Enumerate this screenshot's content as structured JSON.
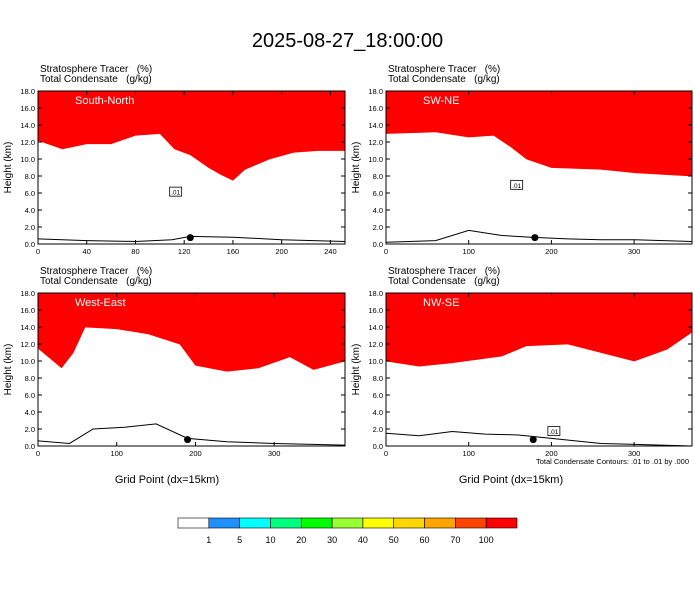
{
  "title": "2025-08-27_18:00:00",
  "field_labels": {
    "shaded": "Stratosphere Tracer   (%)",
    "contour": "Total Condensate   (g/kg)"
  },
  "ylabel": "Height (km)",
  "xlabel": "Grid Point (dx=15km)",
  "contour_note": "Total Condensate Contours: .01 to .01 by .000",
  "contour_label": ".01",
  "colorbar": {
    "levels": [
      "1",
      "5",
      "10",
      "20",
      "30",
      "40",
      "50",
      "60",
      "70",
      "100"
    ],
    "colors": [
      "#ffffff",
      "#1e90ff",
      "#00ffff",
      "#00ff7f",
      "#00ff00",
      "#9aff32",
      "#ffff00",
      "#ffd700",
      "#ffa500",
      "#ff4500",
      "#ff0000"
    ]
  },
  "chart_data": [
    {
      "type": "heatmap",
      "name": "South-North",
      "xlim": [
        0,
        252
      ],
      "ylim": [
        0,
        18
      ],
      "xticks": [
        0,
        40,
        80,
        120,
        160,
        200,
        240
      ],
      "yticks": [
        0.0,
        2.0,
        4.0,
        6.0,
        8.0,
        10.0,
        12.0,
        14.0,
        16.0,
        18.0
      ],
      "tracer_boundary_km": [
        [
          0,
          13.2
        ],
        [
          20,
          12.2
        ],
        [
          40,
          12.8
        ],
        [
          60,
          12.8
        ],
        [
          80,
          13.8
        ],
        [
          100,
          14.0
        ],
        [
          112,
          12.2
        ],
        [
          125,
          11.5
        ],
        [
          140,
          10.0
        ],
        [
          150,
          9.2
        ],
        [
          160,
          8.5
        ],
        [
          170,
          9.8
        ],
        [
          190,
          11.0
        ],
        [
          210,
          11.8
        ],
        [
          230,
          12.0
        ],
        [
          252,
          12.0
        ]
      ],
      "terrain_km": [
        [
          0,
          0.6
        ],
        [
          40,
          0.4
        ],
        [
          80,
          0.3
        ],
        [
          110,
          0.5
        ],
        [
          125,
          0.9
        ],
        [
          160,
          0.8
        ],
        [
          200,
          0.5
        ],
        [
          252,
          0.3
        ]
      ],
      "marker_x": 125,
      "contour_label_at": [
        113,
        6.1
      ]
    },
    {
      "type": "heatmap",
      "name": "SW-NE",
      "xlim": [
        0,
        370
      ],
      "ylim": [
        0,
        18
      ],
      "xticks": [
        0,
        100,
        200,
        300
      ],
      "yticks": [
        0.0,
        2.0,
        4.0,
        6.0,
        8.0,
        10.0,
        12.0,
        14.0,
        16.0,
        18.0
      ],
      "tracer_boundary_km": [
        [
          0,
          14.0
        ],
        [
          60,
          14.2
        ],
        [
          100,
          13.6
        ],
        [
          130,
          13.8
        ],
        [
          150,
          12.5
        ],
        [
          170,
          11.0
        ],
        [
          200,
          10.0
        ],
        [
          260,
          9.8
        ],
        [
          300,
          9.4
        ],
        [
          370,
          9.0
        ]
      ],
      "terrain_km": [
        [
          0,
          0.2
        ],
        [
          60,
          0.4
        ],
        [
          100,
          1.6
        ],
        [
          140,
          1.0
        ],
        [
          175,
          0.8
        ],
        [
          220,
          0.6
        ],
        [
          260,
          0.5
        ],
        [
          300,
          0.5
        ],
        [
          370,
          0.3
        ]
      ],
      "marker_x": 180,
      "contour_label_at": [
        158,
        6.9
      ]
    },
    {
      "type": "heatmap",
      "name": "West-East",
      "xlim": [
        0,
        390
      ],
      "ylim": [
        0,
        18
      ],
      "xticks": [
        0,
        100,
        200,
        300
      ],
      "yticks": [
        0.0,
        2.0,
        4.0,
        6.0,
        8.0,
        10.0,
        12.0,
        14.0,
        16.0,
        18.0
      ],
      "tracer_boundary_km": [
        [
          0,
          12.5
        ],
        [
          30,
          10.2
        ],
        [
          45,
          12.0
        ],
        [
          60,
          15.0
        ],
        [
          100,
          14.8
        ],
        [
          140,
          14.2
        ],
        [
          180,
          13.0
        ],
        [
          200,
          10.5
        ],
        [
          240,
          9.8
        ],
        [
          280,
          10.2
        ],
        [
          320,
          11.5
        ],
        [
          350,
          10.0
        ],
        [
          390,
          11.0
        ]
      ],
      "terrain_km": [
        [
          0,
          0.6
        ],
        [
          40,
          0.3
        ],
        [
          70,
          2.0
        ],
        [
          110,
          2.2
        ],
        [
          150,
          2.6
        ],
        [
          190,
          0.9
        ],
        [
          240,
          0.5
        ],
        [
          300,
          0.3
        ],
        [
          390,
          0.1
        ]
      ],
      "marker_x": 190,
      "contour_label_at": null
    },
    {
      "type": "heatmap",
      "name": "NW-SE",
      "xlim": [
        0,
        370
      ],
      "ylim": [
        0,
        18
      ],
      "xticks": [
        0,
        100,
        200,
        300
      ],
      "yticks": [
        0.0,
        2.0,
        4.0,
        6.0,
        8.0,
        10.0,
        12.0,
        14.0,
        16.0,
        18.0
      ],
      "tracer_boundary_km": [
        [
          0,
          11.0
        ],
        [
          40,
          10.4
        ],
        [
          80,
          10.8
        ],
        [
          110,
          11.2
        ],
        [
          140,
          11.6
        ],
        [
          170,
          12.8
        ],
        [
          220,
          13.0
        ],
        [
          260,
          12.0
        ],
        [
          300,
          11.0
        ],
        [
          340,
          12.4
        ],
        [
          370,
          14.4
        ]
      ],
      "terrain_km": [
        [
          0,
          1.5
        ],
        [
          40,
          1.2
        ],
        [
          80,
          1.7
        ],
        [
          120,
          1.4
        ],
        [
          160,
          1.3
        ],
        [
          200,
          0.9
        ],
        [
          260,
          0.3
        ],
        [
          370,
          0.0
        ]
      ],
      "marker_x": 178,
      "contour_label_at": [
        203,
        1.7
      ]
    }
  ]
}
